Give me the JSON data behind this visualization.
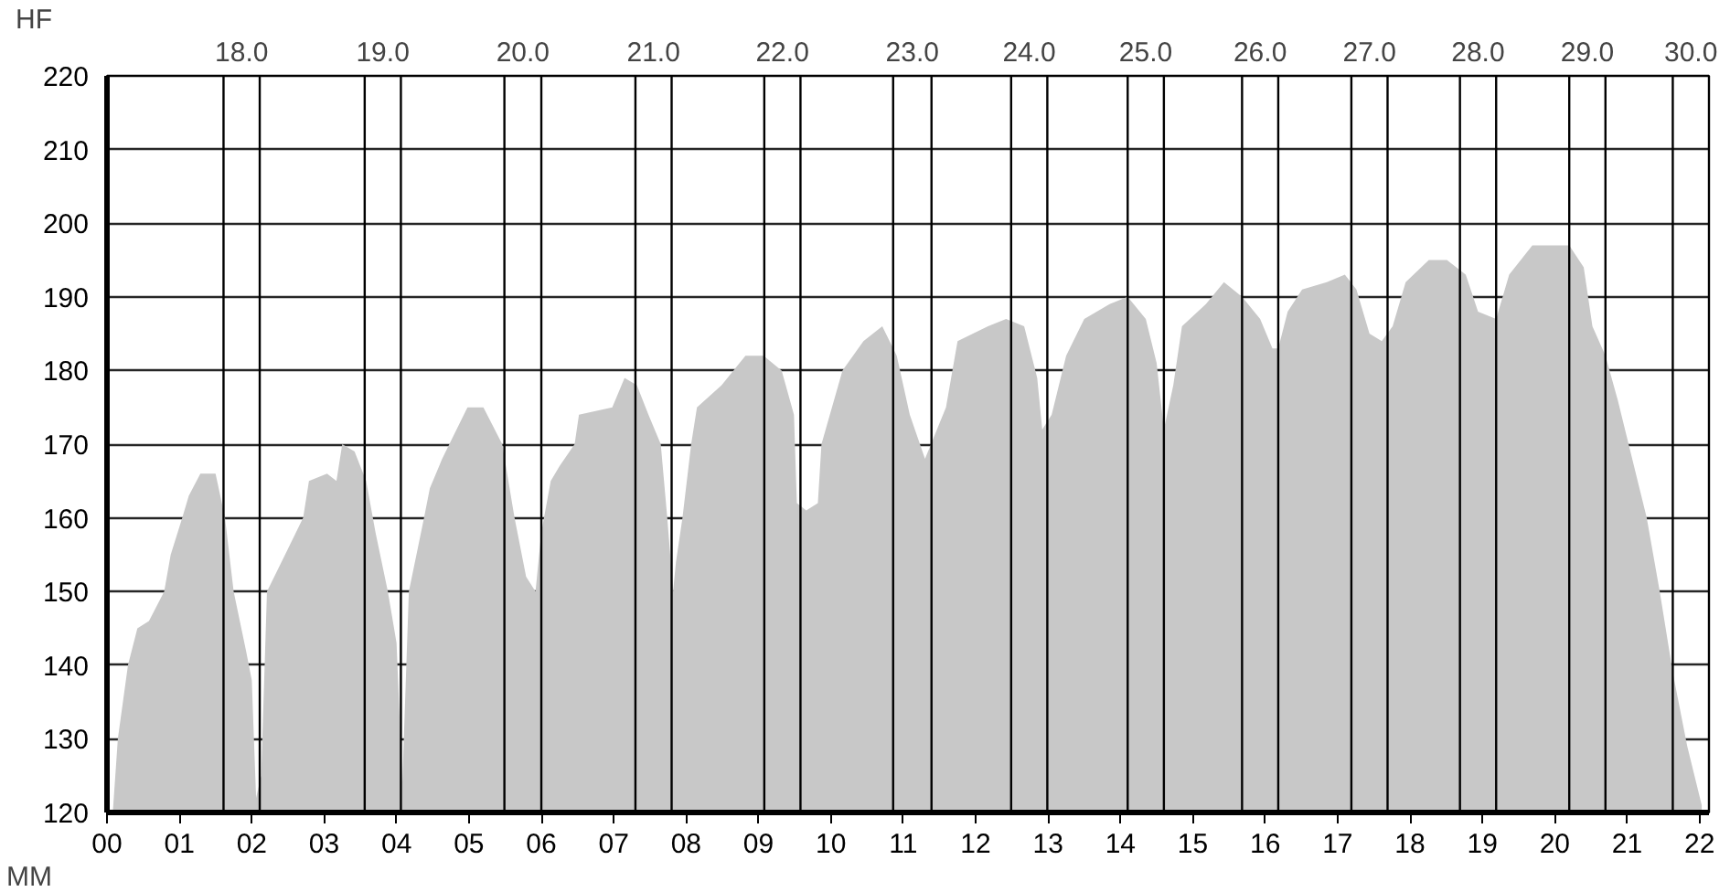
{
  "chart_data": {
    "type": "area",
    "xlabel": "MM",
    "ylabel": "HF",
    "x": [
      0.08,
      0.15,
      0.29,
      0.42,
      0.58,
      0.79,
      0.88,
      1.04,
      1.13,
      1.29,
      1.5,
      1.63,
      1.75,
      1.92,
      2.0,
      2.06,
      2.13,
      2.21,
      2.46,
      2.71,
      2.79,
      3.04,
      3.17,
      3.25,
      3.42,
      3.58,
      3.71,
      3.88,
      4.0,
      4.08,
      4.17,
      4.38,
      4.46,
      4.63,
      4.98,
      5.2,
      5.46,
      5.63,
      5.79,
      5.92,
      6.0,
      6.13,
      6.25,
      6.46,
      6.52,
      6.98,
      7.15,
      7.32,
      7.48,
      7.65,
      7.74,
      7.82,
      7.86,
      7.95,
      8.07,
      8.15,
      8.49,
      8.82,
      9.07,
      9.32,
      9.49,
      9.53,
      9.66,
      9.82,
      9.87,
      10.16,
      10.45,
      10.71,
      10.91,
      11.09,
      11.3,
      11.59,
      11.75,
      12.17,
      12.42,
      12.67,
      12.85,
      12.92,
      13.05,
      13.25,
      13.5,
      13.85,
      14.1,
      14.35,
      14.5,
      14.6,
      14.73,
      14.85,
      15.18,
      15.43,
      15.68,
      15.93,
      16.1,
      16.18,
      16.31,
      16.51,
      16.85,
      17.1,
      17.26,
      17.44,
      17.61,
      17.76,
      17.94,
      18.26,
      18.51,
      18.77,
      18.94,
      19.19,
      19.37,
      19.69,
      20.2,
      20.4,
      20.52,
      20.7,
      20.87,
      21.02,
      21.27,
      21.45,
      21.63,
      21.83,
      22.03
    ],
    "series": [
      {
        "color": "#c8c8c8",
        "values": [
          120,
          130,
          140,
          145,
          146,
          150,
          155,
          160,
          163,
          166,
          166,
          160,
          150,
          142,
          138,
          122,
          125,
          150,
          155,
          160,
          165,
          166,
          165,
          170,
          169,
          165,
          158,
          150,
          143,
          124,
          150,
          160,
          164,
          168,
          175,
          175,
          170,
          160,
          152,
          150,
          158,
          165,
          167,
          170,
          174,
          175,
          179,
          178,
          174,
          170,
          160,
          150,
          154,
          160,
          170,
          175,
          178,
          182,
          182,
          180,
          174,
          162,
          161,
          162,
          170,
          180,
          184,
          186,
          182,
          174,
          168,
          175,
          184,
          186,
          187,
          186,
          179,
          172,
          174,
          182,
          187,
          189,
          190,
          187,
          181,
          172,
          178,
          186,
          189,
          192,
          190,
          187,
          183,
          183,
          188,
          191,
          192,
          193,
          191,
          185,
          184,
          186,
          192,
          195,
          195,
          193,
          188,
          187,
          193,
          197,
          197,
          194,
          186,
          182,
          176,
          170,
          160,
          150,
          139,
          129,
          121
        ]
      }
    ],
    "xlim": [
      0,
      22.13
    ],
    "ylim": [
      120,
      220
    ],
    "xticks": [
      {
        "value": 0,
        "label": "00"
      },
      {
        "value": 1,
        "label": "01"
      },
      {
        "value": 2,
        "label": "02"
      },
      {
        "value": 3,
        "label": "03"
      },
      {
        "value": 4,
        "label": "04"
      },
      {
        "value": 5,
        "label": "05"
      },
      {
        "value": 6,
        "label": "06"
      },
      {
        "value": 7,
        "label": "07"
      },
      {
        "value": 8,
        "label": "08"
      },
      {
        "value": 9,
        "label": "09"
      },
      10,
      11,
      12,
      13,
      14,
      15,
      16,
      17,
      18,
      19,
      20,
      21,
      22
    ],
    "yticks": [
      120,
      130,
      140,
      150,
      160,
      170,
      180,
      190,
      200,
      210,
      220
    ],
    "grid": "y",
    "annotations": [
      "18.0",
      "19.0",
      "20.0",
      "21.0",
      "22.0",
      "23.0",
      "24.0",
      "25.0",
      "26.0",
      "27.0",
      "28.0",
      "29.0",
      "30.0"
    ],
    "ref_lines": [
      {
        "axis": "x",
        "value": 1.61,
        "color": "#000000"
      },
      {
        "axis": "x",
        "value": 2.11,
        "color": "#000000"
      },
      {
        "axis": "x",
        "value": 3.56,
        "color": "#000000"
      },
      {
        "axis": "x",
        "value": 4.06,
        "color": "#000000"
      },
      {
        "axis": "x",
        "value": 5.49,
        "color": "#000000"
      },
      {
        "axis": "x",
        "value": 6.0,
        "color": "#000000"
      },
      {
        "axis": "x",
        "value": 7.3,
        "color": "#000000"
      },
      {
        "axis": "x",
        "value": 7.8,
        "color": "#000000"
      },
      {
        "axis": "x",
        "value": 9.08,
        "color": "#000000"
      },
      {
        "axis": "x",
        "value": 9.58,
        "color": "#000000"
      },
      {
        "axis": "x",
        "value": 10.86,
        "color": "#000000"
      },
      {
        "axis": "x",
        "value": 11.39,
        "color": "#000000"
      },
      {
        "axis": "x",
        "value": 12.49,
        "color": "#000000"
      },
      {
        "axis": "x",
        "value": 12.99,
        "color": "#000000"
      },
      {
        "axis": "x",
        "value": 14.1,
        "color": "#000000"
      },
      {
        "axis": "x",
        "value": 14.6,
        "color": "#000000"
      },
      {
        "axis": "x",
        "value": 15.68,
        "color": "#000000"
      },
      {
        "axis": "x",
        "value": 16.18,
        "color": "#000000"
      },
      {
        "axis": "x",
        "value": 17.19,
        "color": "#000000"
      },
      {
        "axis": "x",
        "value": 17.69,
        "color": "#000000"
      },
      {
        "axis": "x",
        "value": 18.69,
        "color": "#000000"
      },
      {
        "axis": "x",
        "value": 19.19,
        "color": "#000000"
      },
      {
        "axis": "x",
        "value": 20.2,
        "color": "#000000"
      },
      {
        "axis": "x",
        "value": 20.7,
        "color": "#000000"
      },
      {
        "axis": "x",
        "value": 21.63,
        "color": "#000000"
      }
    ]
  }
}
